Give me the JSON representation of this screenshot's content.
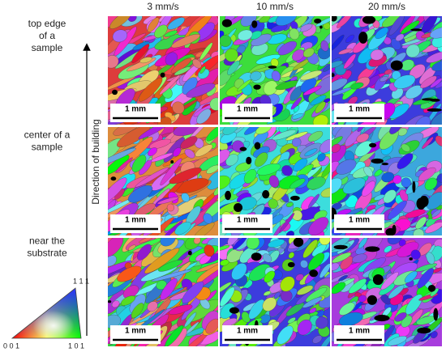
{
  "columns": [
    "3 mm/s",
    "10 mm/s",
    "20 mm/s"
  ],
  "rows": [
    [
      "top edge",
      "of a",
      "sample"
    ],
    [
      "center of a",
      "sample"
    ],
    [
      "near the",
      "substrate"
    ]
  ],
  "arrow_label": "Direction of building",
  "scale_bar": "1 mm",
  "legend": {
    "top": "1 1 1",
    "left": "0 0 1",
    "right": "1 0 1"
  }
}
